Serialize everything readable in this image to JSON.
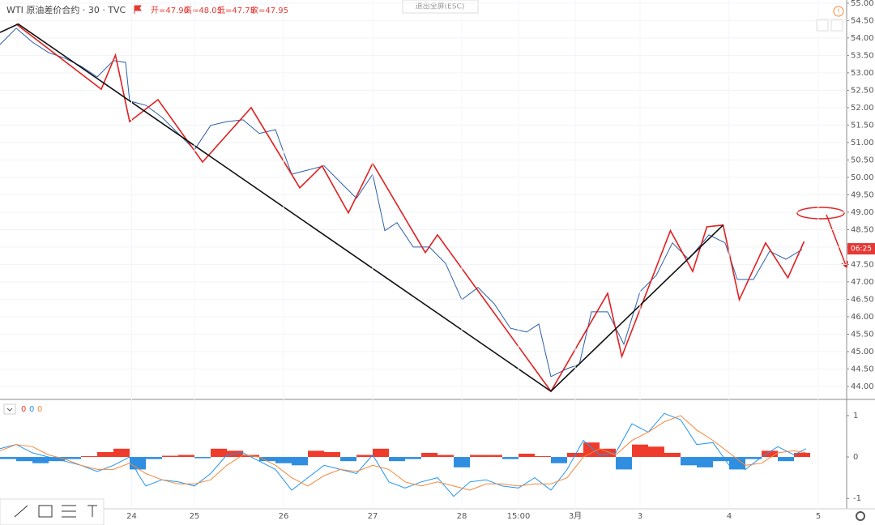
{
  "ui": {
    "exit_fullscreen": "退出全屏(ESC)"
  },
  "chart_data": [
    {
      "type": "line",
      "title": "WTI 原油差价合约 · 30 · TVC",
      "ohlc": [
        "开=47.90",
        "高=48.03",
        "低=47.75",
        "收=47.95"
      ],
      "price_badge": {
        "value": 47.95,
        "label": "06:25",
        "color": "#e53935"
      },
      "xlim": [
        0,
        418
      ],
      "ylim": [
        43.65,
        55.09
      ],
      "yticks": [
        {
          "value": 44,
          "label": "44.00"
        },
        {
          "value": 44.5,
          "label": "44.50"
        },
        {
          "value": 45,
          "label": "45.00"
        },
        {
          "value": 45.5,
          "label": "45.50"
        },
        {
          "value": 46,
          "label": "46.00"
        },
        {
          "value": 46.5,
          "label": "46.50"
        },
        {
          "value": 47,
          "label": "47.00"
        },
        {
          "value": 47.5,
          "label": "47.50"
        },
        {
          "value": 48,
          "label": "48.00"
        },
        {
          "value": 48.5,
          "label": "48.50"
        },
        {
          "value": 49,
          "label": "49.00"
        },
        {
          "value": 49.5,
          "label": "49.50"
        },
        {
          "value": 50,
          "label": "50.00"
        },
        {
          "value": 50.5,
          "label": "50.50"
        },
        {
          "value": 51,
          "label": "51.00"
        },
        {
          "value": 51.5,
          "label": "51.50"
        },
        {
          "value": 52,
          "label": "52.00"
        },
        {
          "value": 52.5,
          "label": "52.50"
        },
        {
          "value": 53,
          "label": "53.00"
        },
        {
          "value": 53.5,
          "label": "53.50"
        },
        {
          "value": 54,
          "label": "54.00"
        },
        {
          "value": 54.5,
          "label": "54.50"
        },
        {
          "value": 55,
          "label": "55.00"
        }
      ],
      "grid": true,
      "series": [
        {
          "color": "#2b5fa8",
          "width": 1,
          "x": [
            0,
            8,
            16,
            24,
            32,
            40,
            48,
            56,
            62,
            64,
            72,
            80,
            88,
            96,
            104,
            112,
            120,
            128,
            136,
            144,
            152,
            160,
            168,
            176,
            184,
            190,
            196,
            204,
            212,
            220,
            228,
            236,
            244,
            252,
            260,
            266,
            272,
            280,
            286,
            292,
            300,
            308,
            316,
            324,
            332,
            340,
            350,
            358,
            364,
            372,
            380,
            388,
            396
          ],
          "values": [
            53.81,
            54.28,
            53.88,
            53.58,
            53.42,
            53.19,
            52.88,
            53.35,
            53.3,
            52.19,
            52.07,
            51.72,
            51.26,
            50.79,
            51.49,
            51.6,
            51.65,
            51.26,
            51.37,
            50.09,
            50.21,
            50.33,
            49.86,
            49.4,
            50.09,
            48.47,
            48.7,
            48.0,
            48.0,
            47.53,
            46.49,
            46.84,
            46.37,
            45.67,
            45.56,
            45.79,
            44.28,
            44.51,
            44.63,
            46.14,
            46.14,
            45.21,
            46.72,
            47.19,
            48.12,
            47.65,
            48.35,
            48.12,
            47.07,
            47.07,
            47.88,
            47.65,
            47.93
          ]
        },
        {
          "color": "#e02020",
          "width": 1.6,
          "x": [
            8,
            50,
            57,
            64,
            78,
            100,
            124,
            148,
            159,
            172,
            184,
            210,
            216,
            272,
            300,
            307,
            331,
            342,
            349,
            357,
            365,
            378,
            389,
            397
          ],
          "values": [
            54.4,
            52.53,
            53.51,
            51.6,
            52.23,
            50.44,
            52.0,
            49.7,
            50.33,
            48.98,
            50.4,
            47.84,
            48.35,
            43.86,
            46.67,
            44.86,
            48.47,
            47.3,
            48.58,
            48.63,
            46.49,
            48.12,
            47.12,
            48.16
          ]
        },
        {
          "color": "#111111",
          "width": 1.6,
          "x": [
            0,
            9,
            272,
            357
          ],
          "values": [
            54.16,
            54.4,
            43.86,
            48.63
          ]
        }
      ]
    },
    {
      "type": "macd",
      "legend_values": [
        0,
        0,
        0
      ],
      "legend_colors": [
        "#ef3b2c",
        "#2196f3",
        "#f5873b"
      ],
      "xlim": [
        0,
        418
      ],
      "xticks": [
        {
          "value": 65,
          "label": "24"
        },
        {
          "value": 96,
          "label": "25"
        },
        {
          "value": 140,
          "label": "26"
        },
        {
          "value": 184,
          "label": "27"
        },
        {
          "value": 228,
          "label": "28"
        },
        {
          "value": 256,
          "label": "15:00"
        },
        {
          "value": 284,
          "label": "3月"
        },
        {
          "value": 316,
          "label": "3"
        },
        {
          "value": 360,
          "label": "4"
        },
        {
          "value": 404,
          "label": "5"
        }
      ],
      "ylim": [
        -1.25,
        1.35
      ],
      "yticks": [
        -1,
        0,
        1
      ],
      "histogram": {
        "positive_color": "#ef3b2c",
        "negative_color": "#2f8ee0",
        "x": [
          4,
          12,
          20,
          28,
          36,
          44,
          52,
          60,
          68,
          76,
          84,
          92,
          100,
          108,
          116,
          124,
          132,
          140,
          148,
          156,
          164,
          172,
          180,
          188,
          196,
          204,
          212,
          220,
          228,
          236,
          244,
          252,
          260,
          268,
          276,
          284,
          292,
          300,
          308,
          316,
          324,
          332,
          340,
          348,
          356,
          364,
          372,
          380,
          388,
          396
        ],
        "values": [
          -0.05,
          -0.1,
          -0.15,
          -0.1,
          -0.05,
          0.02,
          0.12,
          0.2,
          -0.3,
          -0.05,
          0.03,
          0.05,
          -0.03,
          0.2,
          0.15,
          0.05,
          -0.1,
          -0.15,
          -0.2,
          0.15,
          0.12,
          -0.1,
          0.05,
          0.2,
          -0.1,
          -0.05,
          0.1,
          0.05,
          -0.25,
          0.05,
          0.05,
          -0.05,
          0.08,
          0.02,
          -0.15,
          0.1,
          0.35,
          0.2,
          -0.3,
          0.3,
          0.25,
          0.1,
          -0.2,
          -0.25,
          -0.1,
          -0.3,
          -0.05,
          0.15,
          -0.1,
          0.1
        ]
      },
      "series": [
        {
          "color": "#2196f3",
          "x": [
            0,
            8,
            16,
            24,
            32,
            40,
            48,
            56,
            64,
            68,
            72,
            80,
            88,
            96,
            104,
            112,
            120,
            128,
            136,
            144,
            152,
            160,
            168,
            176,
            184,
            192,
            200,
            208,
            216,
            224,
            232,
            240,
            248,
            256,
            264,
            272,
            280,
            288,
            296,
            304,
            312,
            320,
            328,
            336,
            344,
            352,
            360,
            368,
            376,
            384,
            392,
            398
          ],
          "values": [
            0.2,
            0.3,
            0.1,
            0,
            -0.1,
            -0.2,
            -0.35,
            -0.2,
            0,
            -0.4,
            -0.7,
            -0.55,
            -0.6,
            -0.7,
            -0.4,
            0.05,
            0.1,
            -0.1,
            -0.3,
            -0.8,
            -0.5,
            -0.2,
            -0.3,
            -0.4,
            0.05,
            -0.6,
            -0.75,
            -0.6,
            -0.5,
            -0.95,
            -0.6,
            -0.55,
            -0.7,
            -0.75,
            -0.5,
            -0.8,
            -0.3,
            0.4,
            0.05,
            0.1,
            0.8,
            0.6,
            1.05,
            0.9,
            0.3,
            0.35,
            -0.2,
            -0.3,
            0,
            0.25,
            0.05,
            0.2
          ]
        },
        {
          "color": "#f5873b",
          "x": [
            0,
            8,
            16,
            24,
            32,
            40,
            48,
            56,
            64,
            72,
            80,
            88,
            96,
            104,
            112,
            120,
            128,
            136,
            144,
            152,
            160,
            168,
            176,
            184,
            192,
            200,
            208,
            216,
            224,
            232,
            240,
            248,
            256,
            264,
            272,
            280,
            288,
            296,
            304,
            312,
            320,
            328,
            336,
            344,
            352,
            360,
            368,
            376,
            384,
            392,
            398
          ],
          "values": [
            0.15,
            0.3,
            0.25,
            0.05,
            -0.05,
            -0.2,
            -0.3,
            -0.3,
            -0.15,
            -0.4,
            -0.55,
            -0.65,
            -0.65,
            -0.55,
            -0.2,
            0.05,
            0,
            -0.2,
            -0.5,
            -0.7,
            -0.45,
            -0.3,
            -0.35,
            -0.2,
            -0.3,
            -0.6,
            -0.7,
            -0.6,
            -0.7,
            -0.8,
            -0.65,
            -0.65,
            -0.7,
            -0.65,
            -0.65,
            -0.5,
            0,
            0.2,
            0.05,
            0.4,
            0.6,
            0.85,
            1.0,
            0.65,
            0.4,
            0.1,
            -0.2,
            -0.15,
            0.1,
            0.15,
            0.1
          ]
        }
      ]
    }
  ]
}
